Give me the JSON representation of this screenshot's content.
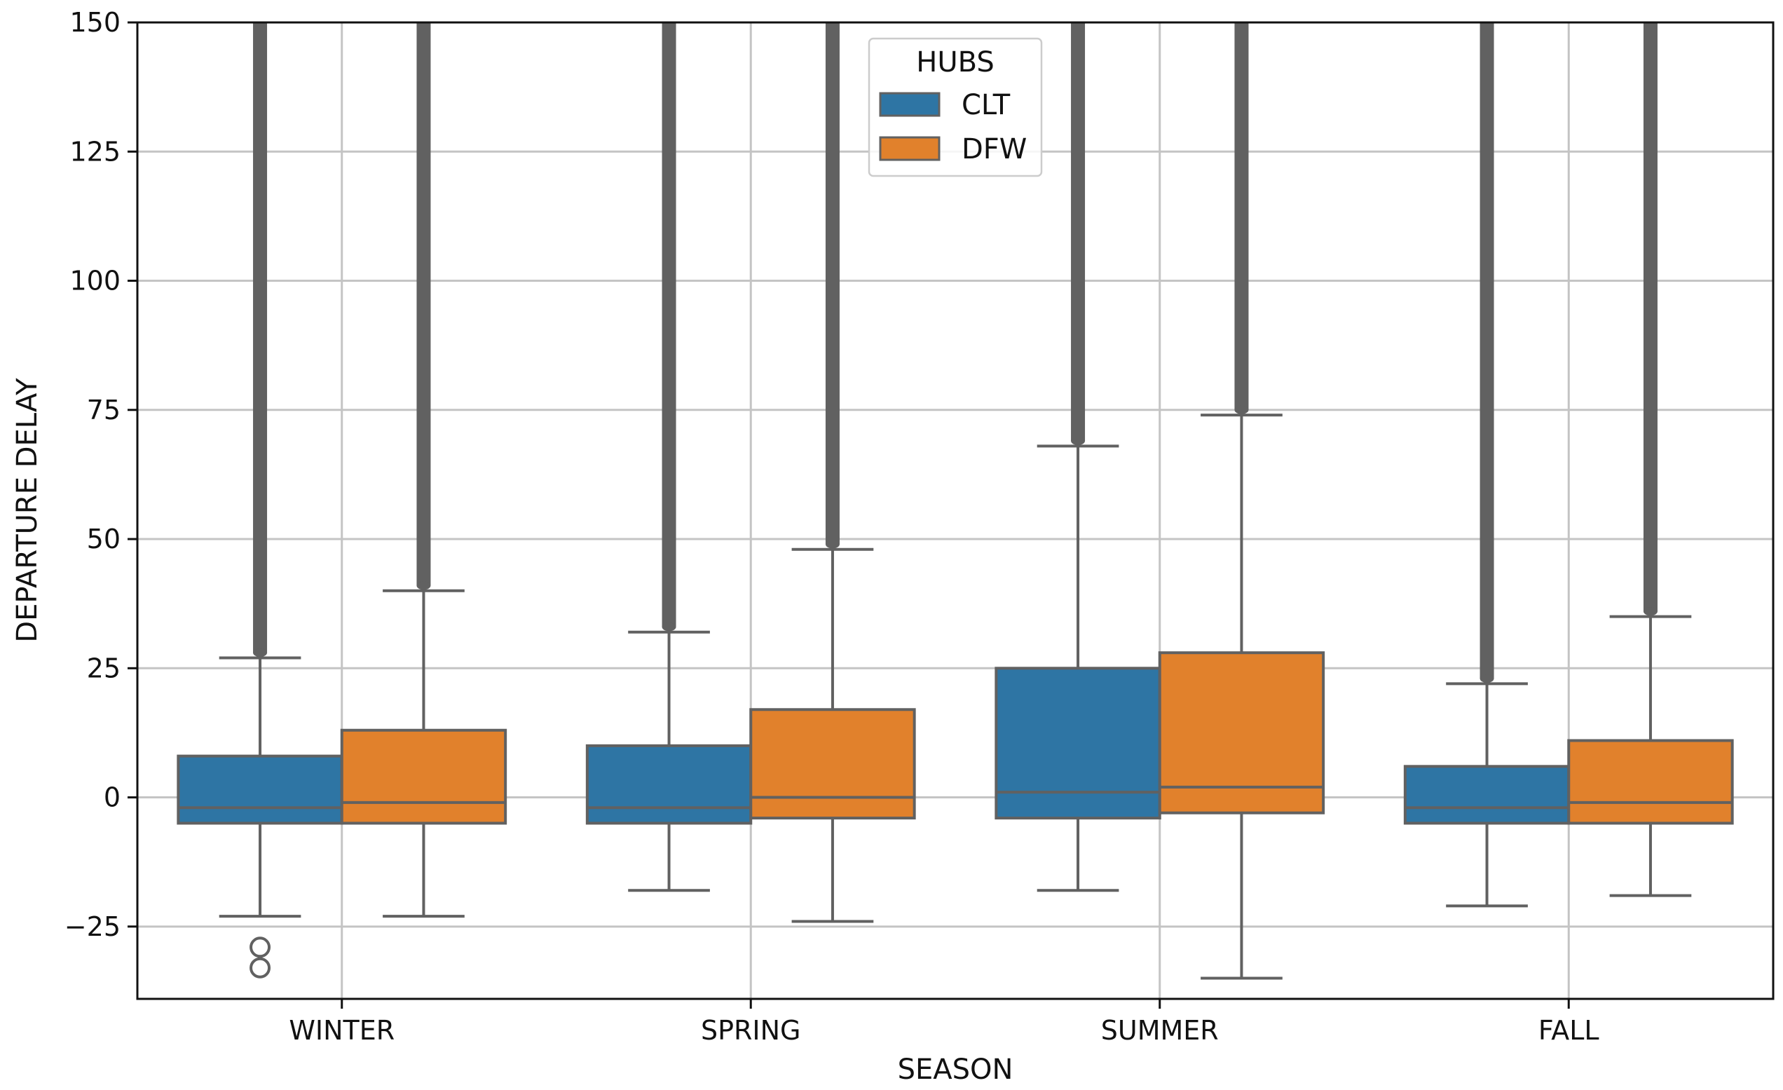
{
  "chart_data": {
    "type": "box",
    "title": "",
    "xlabel": "SEASON",
    "ylabel": "DEPARTURE DELAY",
    "ylim": [
      -39,
      150
    ],
    "yticks": [
      -25,
      0,
      25,
      50,
      75,
      100,
      125,
      150
    ],
    "ytick_labels": [
      "−25",
      "0",
      "25",
      "50",
      "75",
      "100",
      "125",
      "150"
    ],
    "grid": true,
    "categories": [
      "WINTER",
      "SPRING",
      "SUMMER",
      "FALL"
    ],
    "legend": {
      "title": "HUBS",
      "position": "top-center"
    },
    "series": [
      {
        "name": "CLT",
        "color": "#2e75a4",
        "boxes": [
          {
            "category": "WINTER",
            "whisker_low": -23,
            "q1": -5,
            "median": -2,
            "q3": 8,
            "whisker_high": 27,
            "outliers_low": [
              -29,
              -33
            ],
            "outliers_high_from": 28
          },
          {
            "category": "SPRING",
            "whisker_low": -18,
            "q1": -5,
            "median": -2,
            "q3": 10,
            "whisker_high": 32,
            "outliers_low": [],
            "outliers_high_from": 33
          },
          {
            "category": "SUMMER",
            "whisker_low": -18,
            "q1": -4,
            "median": 1,
            "q3": 25,
            "whisker_high": 68,
            "outliers_low": [],
            "outliers_high_from": 69
          },
          {
            "category": "FALL",
            "whisker_low": -21,
            "q1": -5,
            "median": -2,
            "q3": 6,
            "whisker_high": 22,
            "outliers_low": [],
            "outliers_high_from": 23
          }
        ]
      },
      {
        "name": "DFW",
        "color": "#e1812c",
        "boxes": [
          {
            "category": "WINTER",
            "whisker_low": -23,
            "q1": -5,
            "median": -1,
            "q3": 13,
            "whisker_high": 40,
            "outliers_low": [],
            "outliers_high_from": 41
          },
          {
            "category": "SPRING",
            "whisker_low": -24,
            "q1": -4,
            "median": 0,
            "q3": 17,
            "whisker_high": 48,
            "outliers_low": [],
            "outliers_high_from": 49
          },
          {
            "category": "SUMMER",
            "whisker_low": -35,
            "q1": -3,
            "median": 2,
            "q3": 28,
            "whisker_high": 74,
            "outliers_low": [],
            "outliers_high_from": 75
          },
          {
            "category": "FALL",
            "whisker_low": -19,
            "q1": -5,
            "median": -1,
            "q3": 11,
            "whisker_high": 35,
            "outliers_low": [],
            "outliers_high_from": 36
          }
        ]
      }
    ],
    "line_color": "#616161",
    "grid_color": "#c4c4c4"
  }
}
